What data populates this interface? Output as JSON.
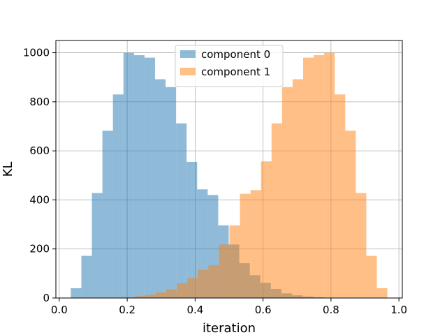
{
  "chart_data": {
    "type": "bar",
    "subtype": "overlapping-histogram",
    "title": "",
    "xlabel": "iteration",
    "ylabel": "KL",
    "xlim": [
      -0.01,
      1.01
    ],
    "ylim": [
      0,
      1050
    ],
    "xticks": [
      "0.0",
      "0.2",
      "0.4",
      "0.6",
      "0.8",
      "1.0"
    ],
    "yticks": [
      "0",
      "200",
      "400",
      "600",
      "800",
      "1000"
    ],
    "grid": true,
    "legend_position": "top-center",
    "series": [
      {
        "name": "component 0",
        "color": "#1f77b4",
        "alpha": 0.5,
        "bin_edges": [
          0.034,
          0.065,
          0.096,
          0.127,
          0.158,
          0.189,
          0.22,
          0.251,
          0.282,
          0.313,
          0.344,
          0.375,
          0.406,
          0.437,
          0.468,
          0.499,
          0.53,
          0.561,
          0.592,
          0.623,
          0.654,
          0.685,
          0.716,
          0.747,
          0.778,
          0.809
        ],
        "counts": [
          40,
          172,
          428,
          682,
          830,
          1000,
          990,
          980,
          892,
          860,
          712,
          555,
          443,
          420,
          296,
          218,
          142,
          93,
          62,
          37,
          19,
          11,
          6,
          3,
          1
        ]
      },
      {
        "name": "component 1",
        "color": "#ff7f0e",
        "alpha": 0.5,
        "bin_edges": [
          0.191,
          0.222,
          0.253,
          0.284,
          0.315,
          0.346,
          0.377,
          0.408,
          0.439,
          0.47,
          0.501,
          0.532,
          0.563,
          0.594,
          0.625,
          0.656,
          0.687,
          0.718,
          0.749,
          0.78,
          0.811,
          0.842,
          0.873,
          0.904,
          0.935,
          0.966
        ],
        "counts": [
          3,
          8,
          13,
          23,
          35,
          60,
          82,
          115,
          133,
          218,
          296,
          425,
          440,
          557,
          712,
          860,
          892,
          980,
          990,
          1000,
          830,
          682,
          428,
          172,
          40
        ]
      }
    ]
  }
}
